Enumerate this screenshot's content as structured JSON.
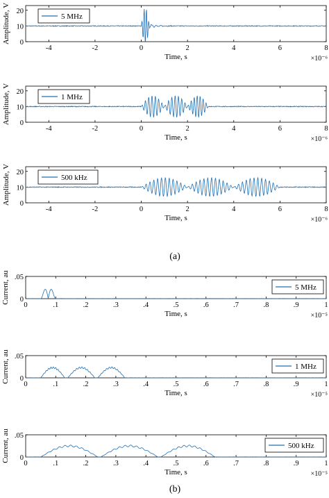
{
  "figure": {
    "caption_a": "(a)",
    "caption_b": "(b)"
  },
  "colors": {
    "trace": "#1f6fb4",
    "axis": "#000000",
    "grid": "#262626"
  },
  "chart_data": [
    {
      "type": "line",
      "panel": "a",
      "ylabel": "Amplitude, V",
      "xlabel": "Time, s",
      "x_multiplier": "×10⁻⁶",
      "xlim": [
        -5,
        8
      ],
      "ylim": [
        0,
        23
      ],
      "xticks": [
        -4,
        -2,
        0,
        2,
        4,
        6,
        8
      ],
      "yticks": [
        0,
        10,
        20
      ],
      "legend": "5 MHz",
      "legend_position": "top-left",
      "signal": {
        "baseline": 10,
        "peak_max": 22,
        "peak_min": 0,
        "bursts": [
          [
            0.0,
            0.35
          ]
        ]
      }
    },
    {
      "type": "line",
      "panel": "a",
      "ylabel": "Amplitude, V",
      "xlabel": "Time, s",
      "x_multiplier": "×10⁻⁶",
      "xlim": [
        -5,
        8
      ],
      "ylim": [
        0,
        23
      ],
      "xticks": [
        -4,
        -2,
        0,
        2,
        4,
        6,
        8
      ],
      "yticks": [
        0,
        10,
        20
      ],
      "legend": "1 MHz",
      "legend_position": "top-left",
      "signal": {
        "baseline": 10,
        "peak_max": 17,
        "peak_min": 3,
        "bursts": [
          [
            0.0,
            1.0
          ],
          [
            1.0,
            2.0
          ],
          [
            2.0,
            2.9
          ]
        ]
      }
    },
    {
      "type": "line",
      "panel": "a",
      "ylabel": "Amplitude, V",
      "xlabel": "Time, s",
      "x_multiplier": "×10⁻⁶",
      "xlim": [
        -5,
        8
      ],
      "ylim": [
        0,
        23
      ],
      "xticks": [
        -4,
        -2,
        0,
        2,
        4,
        6,
        8
      ],
      "yticks": [
        0,
        10,
        20
      ],
      "legend": "500 kHz",
      "legend_position": "top-left",
      "signal": {
        "baseline": 10,
        "peak_max": 16,
        "peak_min": 4,
        "bursts": [
          [
            0.0,
            2.0
          ],
          [
            2.0,
            4.0
          ],
          [
            4.0,
            6.0
          ]
        ]
      }
    },
    {
      "type": "line",
      "panel": "b",
      "ylabel": "Current, au",
      "xlabel": "Time, s",
      "x_multiplier": "×10⁻⁵",
      "xlim": [
        0,
        1
      ],
      "ylim": [
        0,
        0.05
      ],
      "xticks": [
        0,
        0.1,
        0.2,
        0.3,
        0.4,
        0.5,
        0.6,
        0.7,
        0.8,
        0.9,
        1
      ],
      "yticks": [
        0,
        0.05
      ],
      "legend": "5 MHz",
      "legend_position": "top-right",
      "signal": {
        "peak": 0.025,
        "humps": [
          [
            0.05,
            0.1
          ]
        ]
      }
    },
    {
      "type": "line",
      "panel": "b",
      "ylabel": "Current, au",
      "xlabel": "Time, s",
      "x_multiplier": "×10⁻⁵",
      "xlim": [
        0,
        1
      ],
      "ylim": [
        0,
        0.05
      ],
      "xticks": [
        0,
        0.1,
        0.2,
        0.3,
        0.4,
        0.5,
        0.6,
        0.7,
        0.8,
        0.9,
        1
      ],
      "yticks": [
        0,
        0.05
      ],
      "legend": "1 MHz",
      "legend_position": "top-right",
      "signal": {
        "peak": 0.023,
        "humps": [
          [
            0.05,
            0.13
          ],
          [
            0.14,
            0.23
          ],
          [
            0.24,
            0.33
          ]
        ]
      }
    },
    {
      "type": "line",
      "panel": "b",
      "ylabel": "Current, au",
      "xlabel": "Time, s",
      "x_multiplier": "×10⁻⁵",
      "xlim": [
        0,
        1
      ],
      "ylim": [
        0,
        0.05
      ],
      "xticks": [
        0,
        0.1,
        0.2,
        0.3,
        0.4,
        0.5,
        0.6,
        0.7,
        0.8,
        0.9,
        1
      ],
      "yticks": [
        0,
        0.05
      ],
      "legend": "500 kHz",
      "legend_position": "top-right",
      "signal": {
        "peak": 0.025,
        "humps": [
          [
            0.05,
            0.24
          ],
          [
            0.25,
            0.44
          ],
          [
            0.45,
            0.63
          ]
        ]
      }
    }
  ]
}
